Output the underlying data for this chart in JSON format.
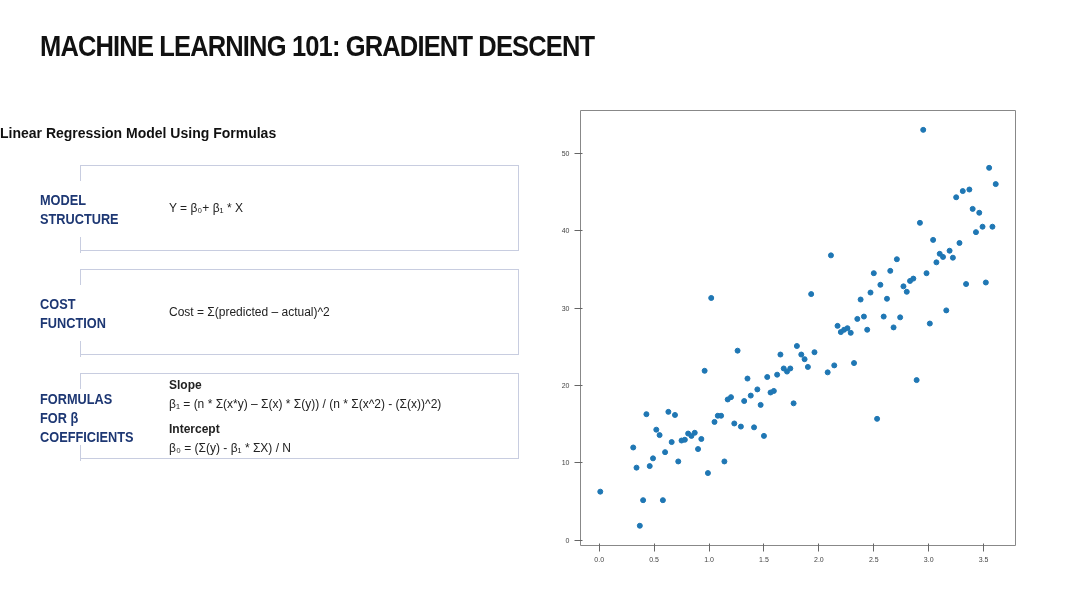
{
  "chart_data": {
    "type": "scatter",
    "title": "MACHINE LEARNING 101: GRADIENT DESCENT",
    "subtitle": "Linear Regression Model Using Formulas",
    "annotations": [
      "MODEL STRUCTURE",
      "Y = β₀+ β₁ * X",
      "COST FUNCTION",
      "Cost = Σ(predicted – actual)^2",
      "FORMULAS FOR β COEFFICIENTS",
      "Slope",
      "β₁ = (n * Σ(x*y) – Σ(x) * Σ(y)) / (n * Σ(x^2) - (Σ(x))^2)",
      "Intercept",
      "β₀ = (Σ(y) - β₁ * ΣX) / N"
    ],
    "series": [
      {
        "color": "#1f77b4",
        "x": [
          0.01,
          0.31,
          0.34,
          0.37,
          0.4,
          0.43,
          0.46,
          0.49,
          0.52,
          0.55,
          0.58,
          0.6,
          0.63,
          0.66,
          0.69,
          0.72,
          0.75,
          0.78,
          0.81,
          0.84,
          0.87,
          0.9,
          0.93,
          0.96,
          0.99,
          1.02,
          1.05,
          1.08,
          1.11,
          1.14,
          1.17,
          1.2,
          1.23,
          1.26,
          1.29,
          1.32,
          1.35,
          1.38,
          1.41,
          1.44,
          1.47,
          1.5,
          1.53,
          1.56,
          1.59,
          1.62,
          1.65,
          1.68,
          1.71,
          1.74,
          1.77,
          1.8,
          1.84,
          1.87,
          1.9,
          1.93,
          1.96,
          2.08,
          2.11,
          2.14,
          2.17,
          2.2,
          2.23,
          2.26,
          2.29,
          2.32,
          2.35,
          2.38,
          2.41,
          2.44,
          2.47,
          2.5,
          2.53,
          2.56,
          2.59,
          2.62,
          2.65,
          2.68,
          2.71,
          2.74,
          2.77,
          2.8,
          2.83,
          2.86,
          2.89,
          2.92,
          2.95,
          2.98,
          3.01,
          3.04,
          3.07,
          3.1,
          3.13,
          3.16,
          3.19,
          3.22,
          3.25,
          3.28,
          3.31,
          3.34,
          3.37,
          3.4,
          3.43,
          3.46,
          3.49,
          3.52,
          3.55,
          3.58,
          3.61
        ],
        "values": [
          6.3,
          12.0,
          9.4,
          1.9,
          5.2,
          16.3,
          9.6,
          10.6,
          14.3,
          13.6,
          5.2,
          11.4,
          16.6,
          12.7,
          16.2,
          10.2,
          12.9,
          13.0,
          13.8,
          13.5,
          13.9,
          11.8,
          13.1,
          21.9,
          8.7,
          31.3,
          15.3,
          16.1,
          16.1,
          10.2,
          18.2,
          18.5,
          15.1,
          24.5,
          14.7,
          18.0,
          20.9,
          18.7,
          14.6,
          19.5,
          17.5,
          13.5,
          21.1,
          19.1,
          19.3,
          21.4,
          24.0,
          22.2,
          21.8,
          22.2,
          17.7,
          25.1,
          24.0,
          23.4,
          22.4,
          31.8,
          24.3,
          21.7,
          36.8,
          22.6,
          27.7,
          26.9,
          27.2,
          27.4,
          26.8,
          22.9,
          28.6,
          31.1,
          28.9,
          27.2,
          32.0,
          34.5,
          15.7,
          33.0,
          28.9,
          31.2,
          34.8,
          27.5,
          36.3,
          28.8,
          32.8,
          32.1,
          33.5,
          33.8,
          20.7,
          41.0,
          53.0,
          34.5,
          28.0,
          38.8,
          35.9,
          37.0,
          36.6,
          29.7,
          37.4,
          36.5,
          44.3,
          38.4,
          45.1,
          33.1,
          45.3,
          42.8,
          39.8,
          42.3,
          40.5,
          33.3,
          48.1,
          40.5,
          46.0
        ]
      }
    ],
    "xlim": [
      -0.17,
      3.79
    ],
    "ylim": [
      -0.65,
      55.5
    ],
    "xticks": [
      {
        "value": 0,
        "label": "0.0"
      },
      {
        "value": 0.5,
        "label": "0.5"
      },
      {
        "value": 1,
        "label": "1.0"
      },
      {
        "value": 1.5,
        "label": "1.5"
      },
      {
        "value": 2,
        "label": "2.0"
      },
      {
        "value": 2.5,
        "label": "2.5"
      },
      {
        "value": 3,
        "label": "3.0"
      },
      {
        "value": 3.5,
        "label": "3.5"
      }
    ],
    "yticks": [
      0,
      10,
      20,
      30,
      40,
      50
    ],
    "marker": "circle"
  }
}
